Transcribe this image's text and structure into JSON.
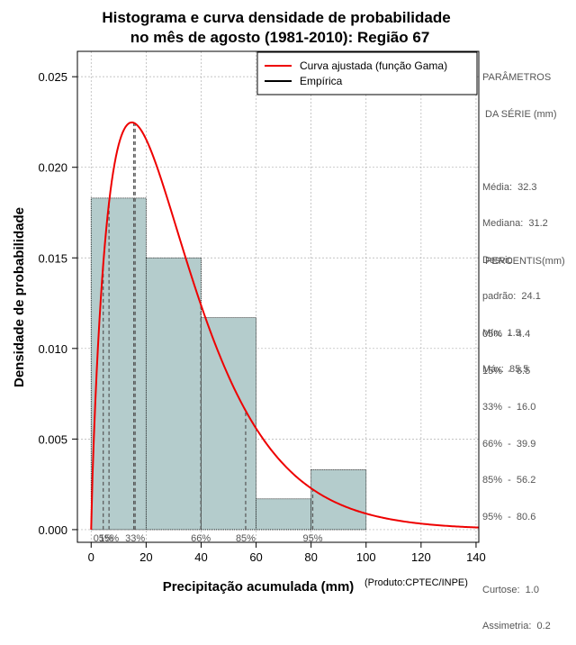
{
  "chart_data": {
    "type": "histogram",
    "title": [
      "Histograma e curva densidade de probabilidade",
      "no mês de agosto (1981-2010): Região 67"
    ],
    "xlabel": "Precipitação acumulada (mm)",
    "ylabel": "Densidade de probabilidade",
    "credit": "(Produto:CPTEC/INPE)",
    "xlim": [
      -5,
      141
    ],
    "ylim": [
      -0.0007,
      0.0264
    ],
    "xticks": [
      0,
      20,
      40,
      60,
      80,
      100,
      120,
      140
    ],
    "xtick_labels": [
      "0",
      "20",
      "40",
      "60",
      "80",
      "100",
      "120",
      "140"
    ],
    "yticks": [
      0,
      0.005,
      0.01,
      0.015,
      0.02,
      0.025
    ],
    "ytick_labels": [
      "0.000",
      "0.005",
      "0.010",
      "0.015",
      "0.020",
      "0.025"
    ],
    "grid": true,
    "bars": [
      {
        "x0": 0,
        "x1": 20,
        "density": 0.0183
      },
      {
        "x0": 20,
        "x1": 40,
        "density": 0.015
      },
      {
        "x0": 40,
        "x1": 60,
        "density": 0.0117
      },
      {
        "x0": 60,
        "x1": 80,
        "density": 0.0017
      },
      {
        "x0": 80,
        "x1": 100,
        "density": 0.0033
      }
    ],
    "curve": {
      "name": "Curva ajustada (função Gama)",
      "shape": 1.84,
      "scale": 17.6,
      "color": "#ee0000"
    },
    "mode_line": {
      "x": 15.5,
      "y": 0.0225
    },
    "percentile_lines": [
      {
        "label": "05%",
        "x": 4.4
      },
      {
        "label": "15%",
        "x": 6.5
      },
      {
        "label": "33%",
        "x": 16.0
      },
      {
        "label": "66%",
        "x": 39.9
      },
      {
        "label": "85%",
        "x": 56.2
      },
      {
        "label": "95%",
        "x": 80.6
      }
    ],
    "legend": {
      "position": "top-right",
      "entries": [
        {
          "label": "Curva ajustada (função Gama)",
          "color": "#ee0000"
        },
        {
          "label": "Empírica",
          "color": "#000000"
        }
      ]
    },
    "colors": {
      "bar_fill": "#b4cccc",
      "grid": "#b0b0b0",
      "percentile": "#555555"
    }
  },
  "params": {
    "title1": "PARÂMETROS",
    "title2": " DA SÉRIE (mm)",
    "media": "Média:  32.3",
    "mediana": "Mediana:  31.2",
    "desvio1": "Desvio",
    "desvio2": "padrão:  24.1",
    "min": "Mín:  1.5",
    "max": "Máx:  85.5"
  },
  "percentis": {
    "title": " PERCENTIS(mm)",
    "p05": "05%  -  4.4",
    "p15": "15%  -  6.5",
    "p33": "33%  -  16.0",
    "p66": "66%  -  39.9",
    "p85": "85%  -  56.2",
    "p95": "95%  -  80.6",
    "curtose": "Curtose:  1.0",
    "assimetria": "Assimetria:  0.2"
  }
}
